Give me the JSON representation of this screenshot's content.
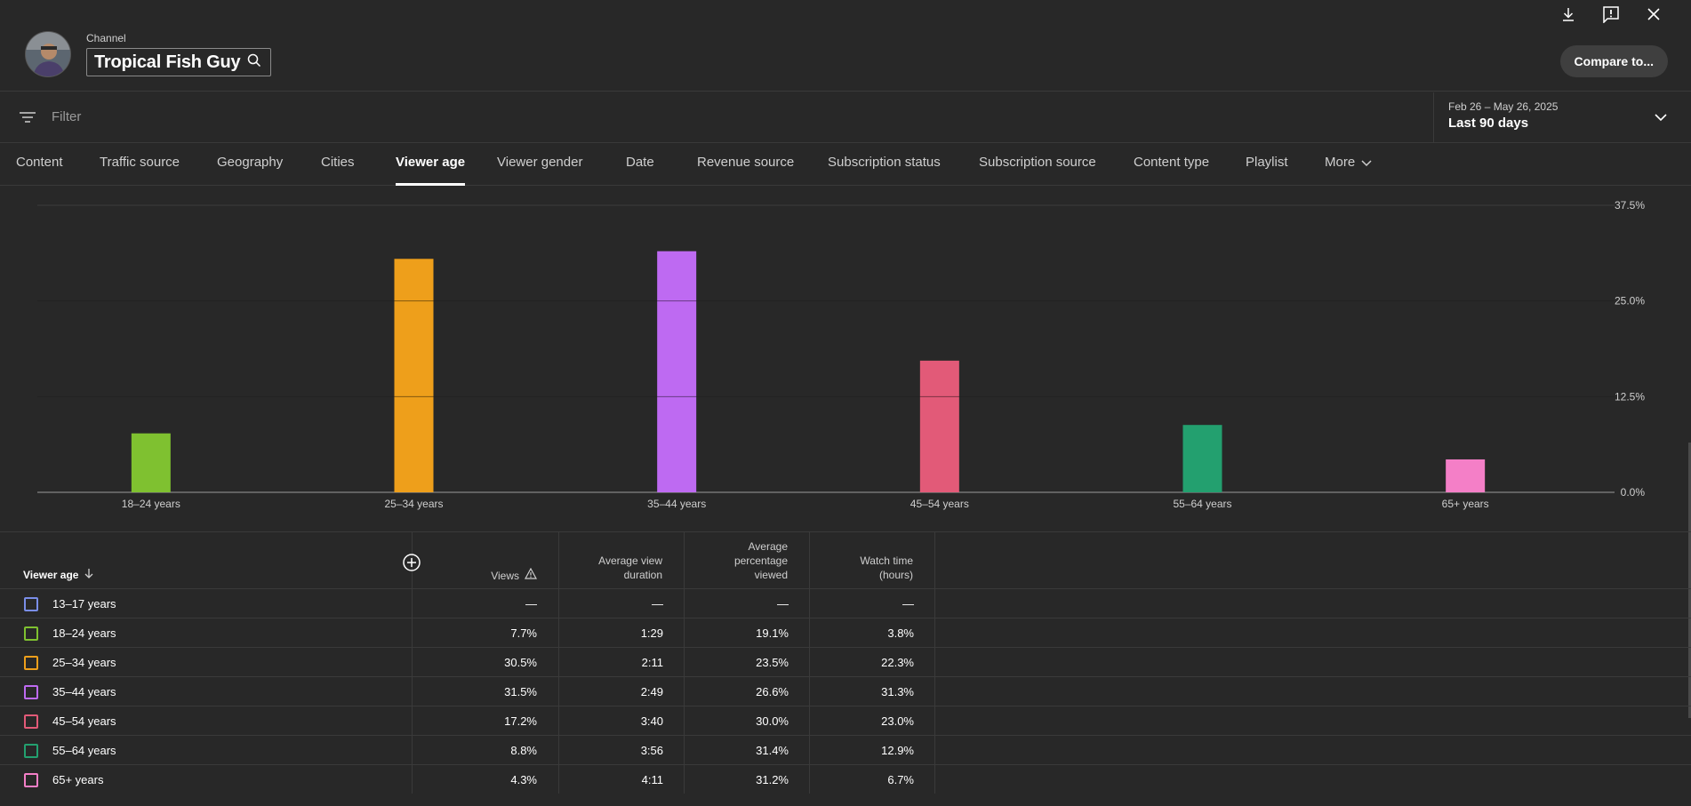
{
  "header": {
    "channel_label": "Channel",
    "channel_name": "Tropical Fish Guy",
    "compare_label": "Compare to..."
  },
  "filter": {
    "placeholder": "Filter",
    "date_range": "Feb 26 – May 26, 2025",
    "date_preset": "Last 90 days"
  },
  "tabs": [
    {
      "label": "Content"
    },
    {
      "label": "Traffic source"
    },
    {
      "label": "Geography"
    },
    {
      "label": "Cities"
    },
    {
      "label": "Viewer age"
    },
    {
      "label": "Viewer gender"
    },
    {
      "label": "Date"
    },
    {
      "label": "Revenue source"
    },
    {
      "label": "Subscription status"
    },
    {
      "label": "Subscription source"
    },
    {
      "label": "Content type"
    },
    {
      "label": "Playlist"
    },
    {
      "label": "More"
    }
  ],
  "active_tab": "Viewer age",
  "chart_data": {
    "type": "bar",
    "categories": [
      "18–24 years",
      "25–34 years",
      "35–44 years",
      "45–54 years",
      "55–64 years",
      "65+ years"
    ],
    "values": [
      7.7,
      30.5,
      31.5,
      17.2,
      8.8,
      4.3
    ],
    "colors": [
      "#7fc130",
      "#ee9f1b",
      "#be6af2",
      "#e25a78",
      "#23a06f",
      "#f47fc7"
    ],
    "y_ticks": [
      "37.5%",
      "25.0%",
      "12.5%",
      "0.0%"
    ],
    "ylim": [
      0,
      37.5
    ],
    "grid": true
  },
  "table": {
    "headers": {
      "dimension": "Viewer age",
      "views": "Views",
      "avg_view_duration": [
        "Average view",
        "duration"
      ],
      "avg_pct_viewed": [
        "Average",
        "percentage",
        "viewed"
      ],
      "watch_time": [
        "Watch time",
        "(hours)"
      ]
    },
    "rows": [
      {
        "label": "13–17 years",
        "color": "#7a8ee8",
        "views": "—",
        "duration": "—",
        "pct": "—",
        "watch": "—"
      },
      {
        "label": "18–24 years",
        "color": "#7fc130",
        "views": "7.7%",
        "duration": "1:29",
        "pct": "19.1%",
        "watch": "3.8%"
      },
      {
        "label": "25–34 years",
        "color": "#ee9f1b",
        "views": "30.5%",
        "duration": "2:11",
        "pct": "23.5%",
        "watch": "22.3%"
      },
      {
        "label": "35–44 years",
        "color": "#be6af2",
        "views": "31.5%",
        "duration": "2:49",
        "pct": "26.6%",
        "watch": "31.3%"
      },
      {
        "label": "45–54 years",
        "color": "#e25a78",
        "views": "17.2%",
        "duration": "3:40",
        "pct": "30.0%",
        "watch": "23.0%"
      },
      {
        "label": "55–64 years",
        "color": "#23a06f",
        "views": "8.8%",
        "duration": "3:56",
        "pct": "31.4%",
        "watch": "12.9%"
      },
      {
        "label": "65+ years",
        "color": "#f47fc7",
        "views": "4.3%",
        "duration": "4:11",
        "pct": "31.2%",
        "watch": "6.7%"
      }
    ]
  }
}
